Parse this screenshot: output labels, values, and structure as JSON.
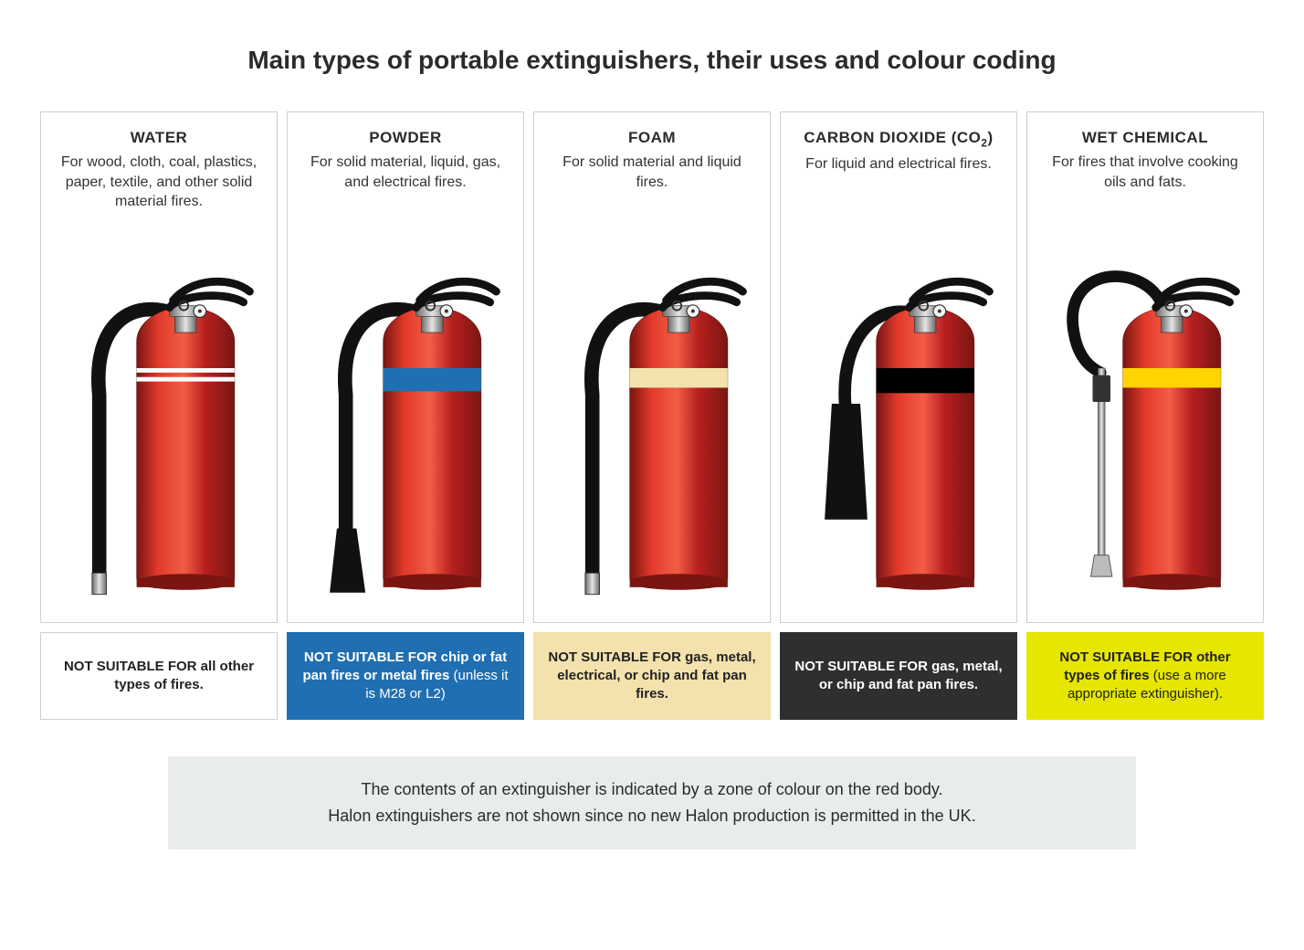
{
  "title": "Main types of portable extinguishers, their uses and colour coding",
  "footnote_line1": "The contents of an extinguisher is indicated by a zone of colour on the red body.",
  "footnote_line2": "Halon extinguishers are not shown since no new Halon production is permitted in the UK.",
  "colors": {
    "body_red": "#b6201f",
    "body_red_light": "#e13a2a",
    "body_red_dark": "#7a1512",
    "metal": "#c9c9c9",
    "metal_dark": "#5a5a5a",
    "black": "#111111",
    "border": "#cfcfcf",
    "footnote_bg": "#e8ecec"
  },
  "extinguishers": [
    {
      "name": "WATER",
      "desc": "For wood, cloth, coal, plastics, paper, textile, and other solid material fires.",
      "band_type": "double_white",
      "band_colors": [
        "#ffffff",
        "#ffffff"
      ],
      "hose_style": "side",
      "warn_bold": "NOT SUITABLE FOR all other types of fires.",
      "warn_plain": "",
      "warn_bg": "#ffffff",
      "warn_fg": "#222222"
    },
    {
      "name": "POWDER",
      "desc": "For solid material, liquid, gas, and electrical fires.",
      "band_type": "single",
      "band_colors": [
        "#1f6fb2"
      ],
      "band_height": 26,
      "hose_style": "side_tapered",
      "warn_bold": "NOT SUITABLE FOR chip or fat pan fires or metal fires",
      "warn_plain": " (unless it is M28 or L2)",
      "warn_bg": "#1f6fb2",
      "warn_fg": "#ffffff"
    },
    {
      "name": "FOAM",
      "desc": "For solid material and liquid fires.",
      "band_type": "single",
      "band_colors": [
        "#f3e2ad"
      ],
      "band_height": 22,
      "hose_style": "side",
      "warn_bold": "NOT SUITABLE FOR gas, metal, electrical, or chip and fat pan fires.",
      "warn_plain": "",
      "warn_bg": "#f3e2ad",
      "warn_fg": "#222222"
    },
    {
      "name": "CARBON DIOXIDE (CO2)",
      "name_html": "CARBON DIOXIDE (CO<sub>2</sub>)",
      "desc": "For liquid and electrical fires.",
      "band_type": "single",
      "band_colors": [
        "#000000"
      ],
      "band_height": 28,
      "hose_style": "co2_horn",
      "warn_bold": "NOT SUITABLE FOR gas, metal, or chip and fat pan fires.",
      "warn_plain": "",
      "warn_bg": "#2f2f2f",
      "warn_fg": "#ffffff"
    },
    {
      "name": "WET CHEMICAL",
      "desc": "For fires that involve cooking oils and fats.",
      "band_type": "single",
      "band_colors": [
        "#ffd400"
      ],
      "band_height": 22,
      "hose_style": "lance",
      "warn_bold": "NOT SUITABLE FOR other types of fires",
      "warn_plain": " (use a more appropriate extinguisher).",
      "warn_bg": "#e6e600",
      "warn_fg": "#222222"
    }
  ]
}
